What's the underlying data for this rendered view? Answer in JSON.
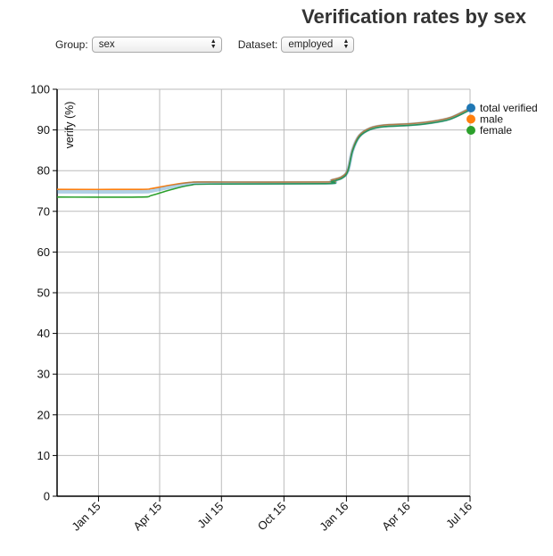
{
  "controls": {
    "group_label": "Group:",
    "group_value": "sex",
    "dataset_label": "Dataset:",
    "dataset_value": "employed"
  },
  "chart_data": {
    "type": "line",
    "title": "Verification rates by sex",
    "ylabel": "verify (%)",
    "xlabel": "",
    "ylim": [
      0,
      100
    ],
    "yticks": [
      0,
      10,
      20,
      30,
      40,
      50,
      60,
      70,
      80,
      90,
      100
    ],
    "xlim": [
      "2014-11-01",
      "2016-07-01"
    ],
    "xticks": [
      {
        "date": "2015-01-01",
        "label": "Jan 15"
      },
      {
        "date": "2015-04-01",
        "label": "Apr 15"
      },
      {
        "date": "2015-07-01",
        "label": "Jul 15"
      },
      {
        "date": "2015-10-01",
        "label": "Oct 15"
      },
      {
        "date": "2016-01-01",
        "label": "Jan 16"
      },
      {
        "date": "2016-04-01",
        "label": "Apr 16"
      },
      {
        "date": "2016-07-01",
        "label": "Jul 16"
      }
    ],
    "grid": true,
    "legend_position": "right",
    "series": [
      {
        "name": "total verified",
        "color": "#1f77b4",
        "points": [
          [
            "2014-11-01",
            74.8
          ],
          [
            "2015-03-01",
            74.8
          ],
          [
            "2015-03-20",
            75.0
          ],
          [
            "2015-04-15",
            75.9
          ],
          [
            "2015-05-15",
            76.8
          ],
          [
            "2015-06-15",
            77.0
          ],
          [
            "2015-12-01",
            77.0
          ],
          [
            "2015-12-10",
            77.5
          ],
          [
            "2015-12-25",
            78.3
          ],
          [
            "2016-01-03",
            80.0
          ],
          [
            "2016-01-10",
            85.0
          ],
          [
            "2016-01-20",
            88.5
          ],
          [
            "2016-02-05",
            90.3
          ],
          [
            "2016-02-25",
            91.0
          ],
          [
            "2016-04-01",
            91.3
          ],
          [
            "2016-05-01",
            91.8
          ],
          [
            "2016-06-01",
            92.8
          ],
          [
            "2016-07-01",
            95.2
          ]
        ]
      },
      {
        "name": "male",
        "color": "#ff7f0e",
        "points": [
          [
            "2014-11-01",
            75.4
          ],
          [
            "2015-03-01",
            75.4
          ],
          [
            "2015-03-20",
            75.6
          ],
          [
            "2015-04-15",
            76.4
          ],
          [
            "2015-05-15",
            77.1
          ],
          [
            "2015-06-15",
            77.2
          ],
          [
            "2015-12-01",
            77.2
          ],
          [
            "2015-12-10",
            77.7
          ],
          [
            "2015-12-25",
            78.5
          ],
          [
            "2016-01-03",
            80.2
          ],
          [
            "2016-01-10",
            85.2
          ],
          [
            "2016-01-20",
            88.7
          ],
          [
            "2016-02-05",
            90.5
          ],
          [
            "2016-02-25",
            91.2
          ],
          [
            "2016-04-01",
            91.5
          ],
          [
            "2016-05-01",
            92.0
          ],
          [
            "2016-06-01",
            93.0
          ],
          [
            "2016-07-01",
            95.3
          ]
        ]
      },
      {
        "name": "female",
        "color": "#2ca02c",
        "points": [
          [
            "2014-11-01",
            73.5
          ],
          [
            "2015-03-01",
            73.5
          ],
          [
            "2015-03-20",
            73.9
          ],
          [
            "2015-04-15",
            75.2
          ],
          [
            "2015-05-15",
            76.4
          ],
          [
            "2015-06-15",
            76.7
          ],
          [
            "2015-12-01",
            76.8
          ],
          [
            "2015-12-10",
            77.3
          ],
          [
            "2015-12-25",
            78.1
          ],
          [
            "2016-01-03",
            79.8
          ],
          [
            "2016-01-10",
            84.8
          ],
          [
            "2016-01-20",
            88.3
          ],
          [
            "2016-02-05",
            90.1
          ],
          [
            "2016-02-25",
            90.8
          ],
          [
            "2016-04-01",
            91.1
          ],
          [
            "2016-05-01",
            91.6
          ],
          [
            "2016-06-01",
            92.6
          ],
          [
            "2016-07-01",
            94.9
          ]
        ]
      }
    ]
  }
}
